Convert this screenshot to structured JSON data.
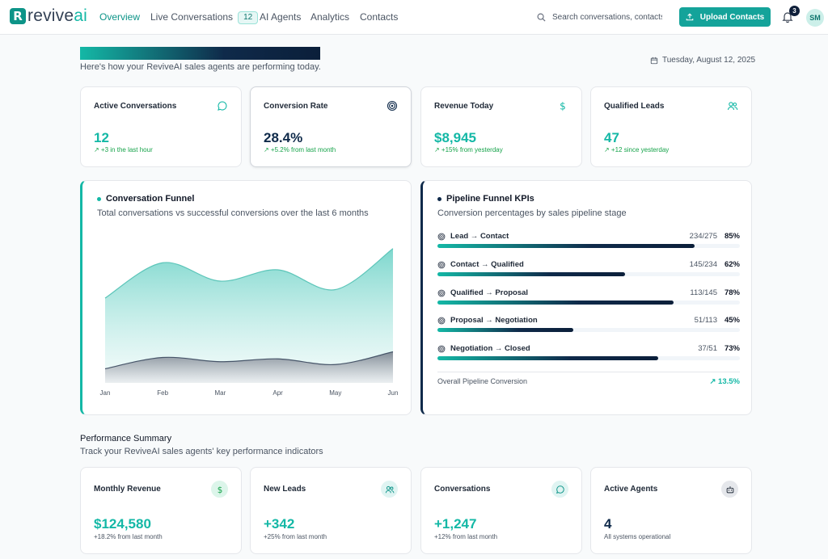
{
  "brand": {
    "name_a": "revive",
    "name_b": "ai",
    "mark": "R"
  },
  "nav": {
    "links": [
      "Overview",
      "Live Conversations",
      "AI Agents",
      "Analytics",
      "Contacts"
    ],
    "live_badge": "12",
    "search_placeholder": "Search conversations, contacts...",
    "upload_label": "Upload Contacts",
    "notifications": "3",
    "avatar": "SM"
  },
  "header": {
    "subtitle": "Here's how your ReviveAI sales agents are performing today.",
    "date": "Tuesday, August 12, 2025"
  },
  "stats": [
    {
      "label": "Active Conversations",
      "value": "12",
      "delta": "↗ +3 in the last hour"
    },
    {
      "label": "Conversion Rate",
      "value": "28.4%",
      "delta": "↗ +5.2% from last month"
    },
    {
      "label": "Revenue Today",
      "value": "$8,945",
      "delta": "↗ +15% from yesterday"
    },
    {
      "label": "Qualified Leads",
      "value": "47",
      "delta": "↗ +12 since yesterday"
    }
  ],
  "funnel": {
    "title": "Conversation Funnel",
    "subtitle": "Total conversations vs successful conversions over the last 6 months"
  },
  "chart_data": {
    "type": "area",
    "title": "Conversation Funnel",
    "categories": [
      "Jan",
      "Feb",
      "Mar",
      "Apr",
      "May",
      "Jun"
    ],
    "ylim": [
      0,
      100
    ],
    "series": [
      {
        "name": "Total conversations",
        "values": [
          60,
          85,
          72,
          80,
          66,
          95
        ],
        "color": "#5ccfc4"
      },
      {
        "name": "Successful conversions",
        "values": [
          10,
          18,
          15,
          17,
          13,
          22
        ],
        "color": "#475569"
      }
    ]
  },
  "kpis": {
    "title": "Pipeline Funnel KPIs",
    "subtitle": "Conversion percentages by sales pipeline stage",
    "rows": [
      {
        "name": "Lead → Contact",
        "ratio": "234/275",
        "pct": "85%",
        "value": 85
      },
      {
        "name": "Contact → Qualified",
        "ratio": "145/234",
        "pct": "62%",
        "value": 62
      },
      {
        "name": "Qualified → Proposal",
        "ratio": "113/145",
        "pct": "78%",
        "value": 78
      },
      {
        "name": "Proposal → Negotiation",
        "ratio": "51/113",
        "pct": "45%",
        "value": 45
      },
      {
        "name": "Negotiation → Closed",
        "ratio": "37/51",
        "pct": "73%",
        "value": 73
      }
    ],
    "overall_label": "Overall Pipeline Conversion",
    "overall_value": "↗ 13.5%"
  },
  "summary": {
    "title": "Performance Summary",
    "subtitle": "Track your ReviveAI sales agents' key performance indicators",
    "cards": [
      {
        "label": "Monthly Revenue",
        "value": "$124,580",
        "delta": "+18.2% from last month"
      },
      {
        "label": "New Leads",
        "value": "+342",
        "delta": "+25% from last month"
      },
      {
        "label": "Conversations",
        "value": "+1,247",
        "delta": "+12% from last month"
      },
      {
        "label": "Active Agents",
        "value": "4",
        "delta": "All systems operational"
      }
    ]
  },
  "colors": {
    "accent": "#14b8a6",
    "navy": "#0f2a4a",
    "positive": "#16a34a"
  }
}
